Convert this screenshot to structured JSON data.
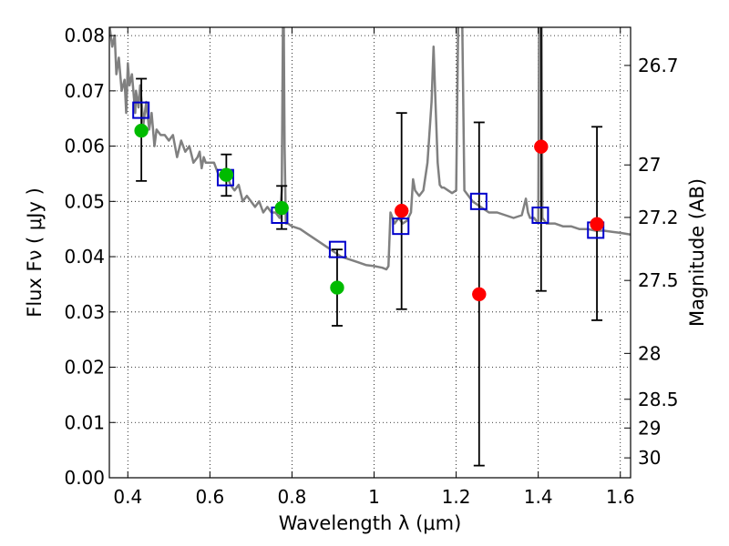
{
  "chart_data": {
    "type": "scatter",
    "xlabel": "Wavelength  λ (μm)",
    "ylabel": "Flux  Fν  ( μJy )",
    "ylabel_right": "Magnitude (AB)",
    "xlim": [
      0.355,
      1.625
    ],
    "ylim": [
      0.0,
      0.0815
    ],
    "grid": true,
    "x_ticks": [
      0.4,
      0.6,
      0.8,
      1.0,
      1.2,
      1.4,
      1.6
    ],
    "x_tick_labels": [
      "0.4",
      "0.6",
      "0.8",
      "1",
      "1.2",
      "1.4",
      "1.6"
    ],
    "y_ticks": [
      0.0,
      0.01,
      0.02,
      0.03,
      0.04,
      0.05,
      0.06,
      0.07,
      0.08
    ],
    "y_tick_labels": [
      "0.00",
      "0.01",
      "0.02",
      "0.03",
      "0.04",
      "0.05",
      "0.06",
      "0.07",
      "0.08"
    ],
    "right_ticks": [
      {
        "label": "26.7",
        "flux": 0.0746
      },
      {
        "label": "27",
        "flux": 0.0566
      },
      {
        "label": "27.2",
        "flux": 0.0471
      },
      {
        "label": "27.5",
        "flux": 0.0357
      },
      {
        "label": "28",
        "flux": 0.0225
      },
      {
        "label": "28.5",
        "flux": 0.0142
      },
      {
        "label": "29",
        "flux": 0.009
      },
      {
        "label": "30",
        "flux": 0.0036
      }
    ],
    "series": [
      {
        "kind": "line",
        "color": "#808080",
        "x": [
          0.355,
          0.362,
          0.368,
          0.372,
          0.378,
          0.385,
          0.392,
          0.396,
          0.4,
          0.404,
          0.41,
          0.418,
          0.42,
          0.426,
          0.43,
          0.438,
          0.445,
          0.452,
          0.458,
          0.465,
          0.47,
          0.48,
          0.49,
          0.5,
          0.51,
          0.52,
          0.53,
          0.54,
          0.55,
          0.56,
          0.57,
          0.575,
          0.58,
          0.585,
          0.59,
          0.6,
          0.61,
          0.62,
          0.63,
          0.64,
          0.65,
          0.66,
          0.67,
          0.68,
          0.69,
          0.7,
          0.71,
          0.72,
          0.73,
          0.74,
          0.75,
          0.76,
          0.77,
          0.775,
          0.778,
          0.78,
          0.782,
          0.785,
          0.79,
          0.8,
          0.82,
          0.84,
          0.86,
          0.88,
          0.9,
          0.92,
          0.94,
          0.96,
          0.98,
          1.0,
          1.02,
          1.03,
          1.035,
          1.04,
          1.045,
          1.05,
          1.06,
          1.07,
          1.08,
          1.09,
          1.095,
          1.1,
          1.11,
          1.12,
          1.13,
          1.14,
          1.145,
          1.15,
          1.155,
          1.16,
          1.165,
          1.17,
          1.18,
          1.19,
          1.2,
          1.205,
          1.21,
          1.215,
          1.22,
          1.23,
          1.24,
          1.25,
          1.26,
          1.28,
          1.3,
          1.32,
          1.34,
          1.36,
          1.37,
          1.375,
          1.38,
          1.39,
          1.4,
          1.402,
          1.405,
          1.408,
          1.41,
          1.42,
          1.44,
          1.46,
          1.48,
          1.5,
          1.52,
          1.54,
          1.56,
          1.58,
          1.6,
          1.625
        ],
        "y": [
          0.082,
          0.078,
          0.08,
          0.073,
          0.076,
          0.07,
          0.072,
          0.066,
          0.075,
          0.071,
          0.073,
          0.066,
          0.07,
          0.067,
          0.071,
          0.064,
          0.068,
          0.063,
          0.066,
          0.06,
          0.063,
          0.062,
          0.062,
          0.061,
          0.062,
          0.058,
          0.061,
          0.059,
          0.06,
          0.057,
          0.058,
          0.059,
          0.056,
          0.058,
          0.057,
          0.057,
          0.057,
          0.055,
          0.054,
          0.055,
          0.053,
          0.052,
          0.053,
          0.05,
          0.051,
          0.05,
          0.049,
          0.05,
          0.048,
          0.049,
          0.048,
          0.048,
          0.047,
          0.052,
          0.082,
          0.082,
          0.06,
          0.046,
          0.046,
          0.0455,
          0.045,
          0.044,
          0.043,
          0.042,
          0.041,
          0.04,
          0.0395,
          0.039,
          0.0385,
          0.0383,
          0.038,
          0.0377,
          0.0383,
          0.048,
          0.047,
          0.046,
          0.047,
          0.046,
          0.0465,
          0.048,
          0.054,
          0.052,
          0.051,
          0.052,
          0.057,
          0.068,
          0.078,
          0.067,
          0.057,
          0.053,
          0.0525,
          0.0525,
          0.052,
          0.0515,
          0.052,
          0.082,
          0.082,
          0.082,
          0.052,
          0.051,
          0.05,
          0.0495,
          0.049,
          0.048,
          0.048,
          0.0475,
          0.047,
          0.0475,
          0.0505,
          0.048,
          0.047,
          0.047,
          0.046,
          0.082,
          0.082,
          0.082,
          0.047,
          0.046,
          0.046,
          0.0455,
          0.0455,
          0.045,
          0.045,
          0.0447,
          0.0447,
          0.0445,
          0.0443,
          0.044
        ]
      },
      {
        "kind": "model-squares",
        "color": "#0000cc",
        "x": [
          0.432,
          0.638,
          0.77,
          0.911,
          1.065,
          1.255,
          1.405,
          1.54
        ],
        "y": [
          0.0665,
          0.0543,
          0.0475,
          0.0413,
          0.0455,
          0.05,
          0.0475,
          0.0448
        ]
      },
      {
        "kind": "observed-points",
        "x": [
          0.433,
          0.64,
          0.775,
          0.91,
          1.067,
          1.256,
          1.407,
          1.543
        ],
        "y": [
          0.0628,
          0.0548,
          0.0488,
          0.0344,
          0.0483,
          0.0332,
          0.0599,
          0.0459
        ],
        "err_low": [
          0.0537,
          0.051,
          0.045,
          0.0275,
          0.0305,
          0.0022,
          0.0338,
          0.0285
        ],
        "err_high": [
          0.0722,
          0.0585,
          0.0528,
          0.0413,
          0.066,
          0.0643,
          0.085,
          0.0635
        ],
        "colors": [
          "#00bb00",
          "#00bb00",
          "#00bb00",
          "#00bb00",
          "#ff0000",
          "#ff0000",
          "#ff0000",
          "#ff0000"
        ]
      }
    ]
  }
}
